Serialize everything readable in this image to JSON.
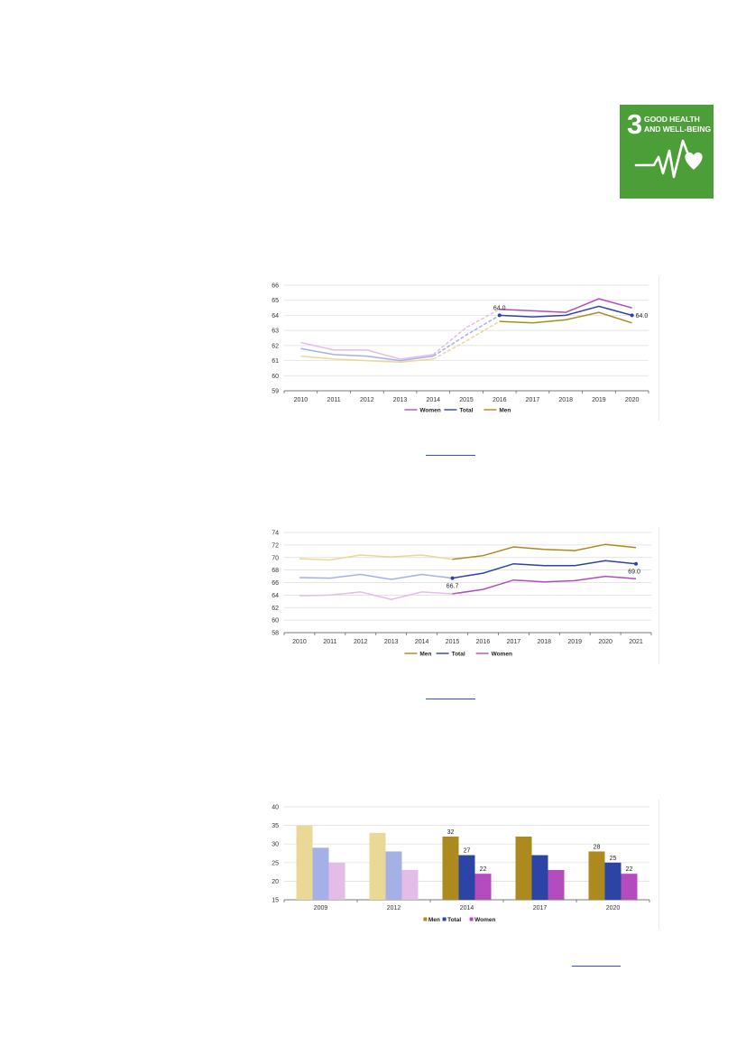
{
  "sdg_badge": {
    "number": "3",
    "line1": "GOOD HEALTH",
    "line2": "AND WELL-BEING",
    "color": "#4c9f38",
    "icon": "heartbeat-heart-icon"
  },
  "colors": {
    "women": "#b44cc0",
    "total": "#2c44a6",
    "men": "#ad8a1e",
    "women_light": "#e3bde8",
    "total_light": "#a5b1e6",
    "men_light": "#ead897",
    "link": "#3a4fb6"
  },
  "chart_data": [
    {
      "type": "line",
      "categories": [
        "2010",
        "2011",
        "2012",
        "2013",
        "2014",
        "2015",
        "2016",
        "2017",
        "2018",
        "2019",
        "2020"
      ],
      "ylim": [
        59,
        66
      ],
      "yticks": [
        "59",
        "60",
        "61",
        "62",
        "63",
        "64",
        "65",
        "66"
      ],
      "grid": true,
      "legend_position": "bottom",
      "series": [
        {
          "name": "Women",
          "values": [
            62.2,
            61.7,
            61.7,
            61.1,
            61.4,
            63.2,
            64.4,
            64.3,
            64.2,
            65.1,
            64.5
          ]
        },
        {
          "name": "Total",
          "values": [
            61.8,
            61.4,
            61.3,
            61.0,
            61.3,
            62.7,
            64.0,
            63.9,
            64.0,
            64.6,
            64.0
          ]
        },
        {
          "name": "Men",
          "values": [
            61.3,
            61.1,
            61.0,
            60.9,
            61.1,
            62.3,
            63.6,
            63.5,
            63.7,
            64.2,
            63.5
          ]
        }
      ],
      "annotations": [
        {
          "series": "Total",
          "category": "2016",
          "text": "64.0"
        },
        {
          "series": "Total",
          "category": "2020",
          "text": "64.0"
        }
      ]
    },
    {
      "type": "line",
      "categories": [
        "2010",
        "2011",
        "2012",
        "2013",
        "2014",
        "2015",
        "2016",
        "2017",
        "2018",
        "2019",
        "2020",
        "2021"
      ],
      "ylim": [
        58,
        74
      ],
      "yticks": [
        "58",
        "60",
        "62",
        "64",
        "66",
        "68",
        "70",
        "72",
        "74"
      ],
      "grid": true,
      "legend_position": "bottom",
      "series": [
        {
          "name": "Men",
          "values": [
            69.8,
            69.6,
            70.4,
            70.1,
            70.4,
            69.7,
            70.3,
            71.7,
            71.3,
            71.1,
            72.1,
            71.6
          ]
        },
        {
          "name": "Total",
          "values": [
            66.8,
            66.7,
            67.3,
            66.5,
            67.3,
            66.7,
            67.5,
            69.0,
            68.7,
            68.7,
            69.5,
            69.0
          ]
        },
        {
          "name": "Women",
          "values": [
            63.9,
            64.0,
            64.5,
            63.3,
            64.5,
            64.2,
            64.9,
            66.4,
            66.1,
            66.3,
            67.0,
            66.6
          ]
        }
      ],
      "annotations": [
        {
          "series": "Total",
          "category": "2015",
          "text": "66.7"
        },
        {
          "series": "Total",
          "category": "2021",
          "text": "69.0"
        }
      ]
    },
    {
      "type": "bar",
      "categories": [
        "2009",
        "2012",
        "2014",
        "2017",
        "2020"
      ],
      "ylim": [
        15,
        40
      ],
      "yticks": [
        "15",
        "20",
        "25",
        "30",
        "35",
        "40"
      ],
      "grid": true,
      "legend_position": "bottom",
      "series": [
        {
          "name": "Men",
          "values": [
            35,
            33,
            32,
            32,
            28
          ]
        },
        {
          "name": "Total",
          "values": [
            29,
            28,
            27,
            27,
            25
          ]
        },
        {
          "name": "Women",
          "values": [
            25,
            23,
            22,
            23,
            22
          ]
        }
      ],
      "data_labels": [
        {
          "series": "Men",
          "category": "2014",
          "text": "32"
        },
        {
          "series": "Total",
          "category": "2014",
          "text": "27"
        },
        {
          "series": "Women",
          "category": "2014",
          "text": "22"
        },
        {
          "series": "Men",
          "category": "2020",
          "text": "28"
        },
        {
          "series": "Total",
          "category": "2020",
          "text": "25"
        },
        {
          "series": "Women",
          "category": "2020",
          "text": "22"
        }
      ]
    }
  ]
}
